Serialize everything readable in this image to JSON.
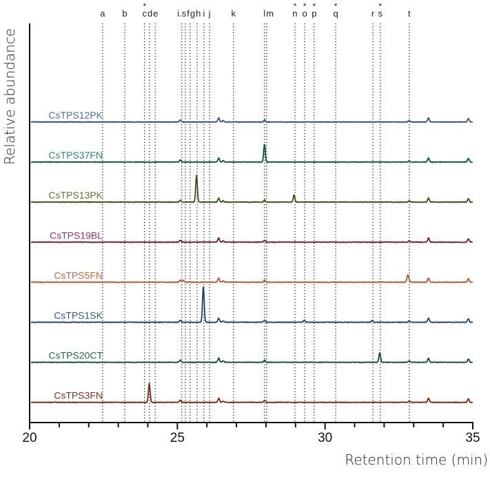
{
  "chart_data": {
    "type": "line",
    "title": "",
    "xlabel": "Retention time (min)",
    "ylabel": "Relative abundance",
    "xlim": [
      20,
      35
    ],
    "xticks": [
      20,
      25,
      30,
      35
    ],
    "xtick_labels": [
      "20",
      "25",
      "30",
      "35"
    ],
    "grid": false,
    "markers": [
      {
        "label": "a",
        "x": 22.47,
        "star": false
      },
      {
        "label": "b",
        "x": 23.22,
        "star": false
      },
      {
        "label": "c",
        "x": 23.89,
        "star": true
      },
      {
        "label": "d",
        "x": 24.06,
        "star": false
      },
      {
        "label": "e",
        "x": 24.25,
        "star": false
      },
      {
        "label": "i.s",
        "x": 25.15,
        "star": false
      },
      {
        "label": "f",
        "x": 25.27,
        "star": false
      },
      {
        "label": "g",
        "x": 25.43,
        "star": false
      },
      {
        "label": "h",
        "x": 25.67,
        "star": false
      },
      {
        "label": "i",
        "x": 25.9,
        "star": false
      },
      {
        "label": "j",
        "x": 26.09,
        "star": false
      },
      {
        "label": "k",
        "x": 26.9,
        "star": false
      },
      {
        "label": "l",
        "x": 27.95,
        "star": false
      },
      {
        "label": "m",
        "x": 28.02,
        "star": false
      },
      {
        "label": "n",
        "x": 28.98,
        "star": true
      },
      {
        "label": "o",
        "x": 29.31,
        "star": true
      },
      {
        "label": "p",
        "x": 29.63,
        "star": true
      },
      {
        "label": "q",
        "x": 30.36,
        "star": true
      },
      {
        "label": "r",
        "x": 31.62,
        "star": false
      },
      {
        "label": "s",
        "x": 31.87,
        "star": true
      },
      {
        "label": "t",
        "x": 32.85,
        "star": false
      }
    ],
    "star_symbol": "*",
    "common_peaks": [
      [
        25.1,
        3
      ],
      [
        26.4,
        6
      ],
      [
        26.55,
        2
      ],
      [
        27.95,
        3
      ],
      [
        32.85,
        2
      ],
      [
        33.5,
        6
      ],
      [
        34.85,
        5
      ]
    ],
    "series": [
      {
        "name": "CsTPS12PK",
        "color": "#34507e",
        "label_color": "#4a6fa8",
        "peaks": []
      },
      {
        "name": "CsTPS37FN",
        "color": "#14503f",
        "label_color": "#2e8a70",
        "peaks": [
          [
            27.95,
            23
          ]
        ]
      },
      {
        "name": "CsTPS13PK",
        "color": "#34500f",
        "label_color": "#5a7a2a",
        "peaks": [
          [
            25.65,
            39
          ],
          [
            28.95,
            10
          ]
        ]
      },
      {
        "name": "CsTPS19BL",
        "color": "#6e1a3c",
        "label_color": "#a03060",
        "peaks": []
      },
      {
        "name": "CsTPS5FN",
        "color": "#b5532c",
        "label_color": "#d06a40",
        "peaks": [
          [
            25.2,
            3
          ],
          [
            32.8,
            10
          ]
        ]
      },
      {
        "name": "CsTPS1SK",
        "color": "#263f63",
        "label_color": "#3a5a80",
        "peaks": [
          [
            25.88,
            52
          ],
          [
            29.3,
            3
          ],
          [
            31.6,
            3
          ]
        ]
      },
      {
        "name": "CsTPS20CT",
        "color": "#114d3a",
        "label_color": "#1e6a50",
        "peaks": [
          [
            31.85,
            14
          ]
        ]
      },
      {
        "name": "CsTPS3FN",
        "color": "#7e2610",
        "label_color": "#8a3020",
        "peaks": [
          [
            24.05,
            27
          ]
        ]
      }
    ]
  }
}
